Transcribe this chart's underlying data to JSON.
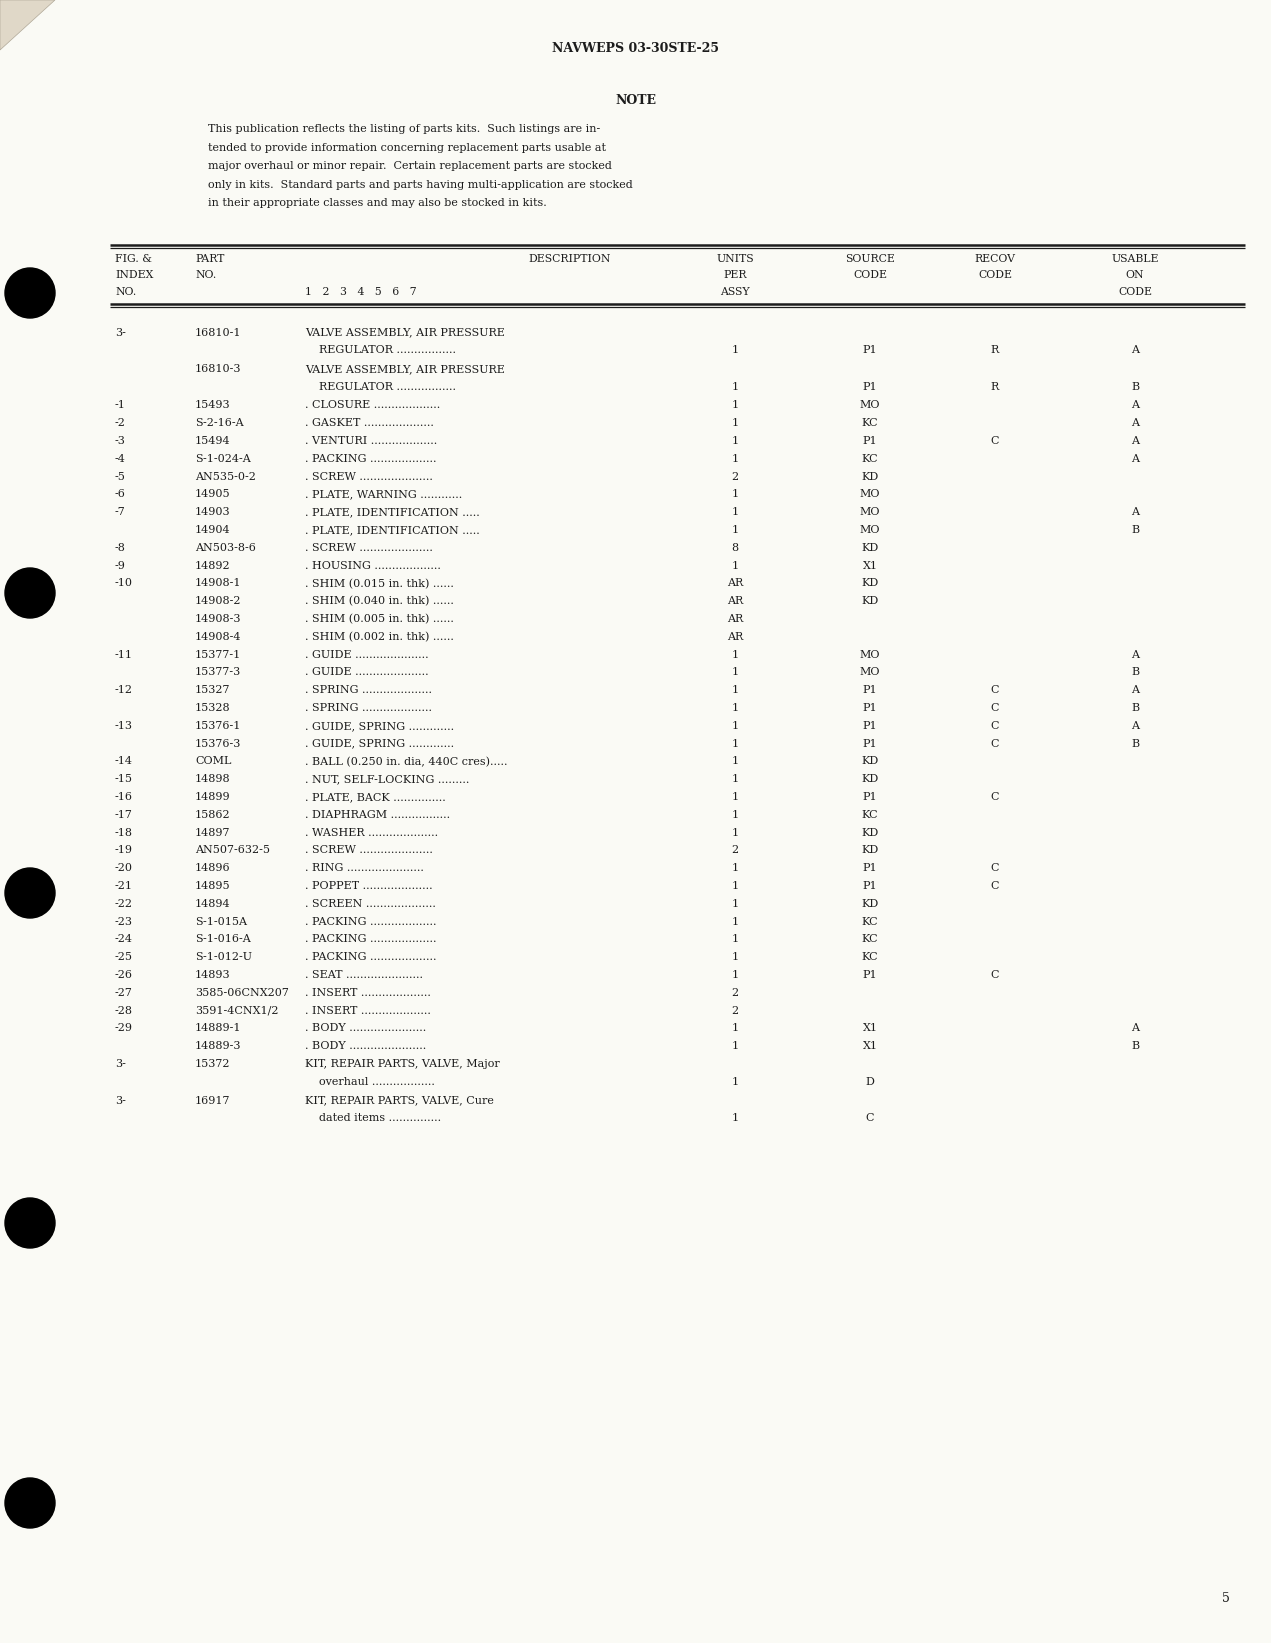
{
  "page_header": "NAVWEPS 03-30STE-25",
  "note_title": "NOTE",
  "note_lines": [
    "This publication reflects the listing of parts kits.  Such listings are in-",
    "tended to provide information concerning replacement parts usable at",
    "major overhaul or minor repair.  Certain replacement parts are stocked",
    "only in kits.  Standard parts and parts having multi-application are stocked",
    "in their appropriate classes and may also be stocked in kits."
  ],
  "rows": [
    {
      "fig": "3-",
      "part": "16810-1",
      "desc1": "VALVE ASSEMBLY, AIR PRESSURE",
      "desc2": "    REGULATOR .................",
      "units": "1",
      "source": "P1",
      "recov": "R",
      "usable": "A"
    },
    {
      "fig": "",
      "part": "16810-3",
      "desc1": "VALVE ASSEMBLY, AIR PRESSURE",
      "desc2": "    REGULATOR .................",
      "units": "1",
      "source": "P1",
      "recov": "R",
      "usable": "B"
    },
    {
      "fig": "-1",
      "part": "15493",
      "desc1": ". CLOSURE ...................",
      "desc2": "",
      "units": "1",
      "source": "MO",
      "recov": "",
      "usable": "A"
    },
    {
      "fig": "-2",
      "part": "S-2-16-A",
      "desc1": ". GASKET ....................",
      "desc2": "",
      "units": "1",
      "source": "KC",
      "recov": "",
      "usable": "A"
    },
    {
      "fig": "-3",
      "part": "15494",
      "desc1": ". VENTURI ...................",
      "desc2": "",
      "units": "1",
      "source": "P1",
      "recov": "C",
      "usable": "A"
    },
    {
      "fig": "-4",
      "part": "S-1-024-A",
      "desc1": ". PACKING ...................",
      "desc2": "",
      "units": "1",
      "source": "KC",
      "recov": "",
      "usable": "A"
    },
    {
      "fig": "-5",
      "part": "AN535-0-2",
      "desc1": ". SCREW .....................",
      "desc2": "",
      "units": "2",
      "source": "KD",
      "recov": "",
      "usable": ""
    },
    {
      "fig": "-6",
      "part": "14905",
      "desc1": ". PLATE, WARNING ............",
      "desc2": "",
      "units": "1",
      "source": "MO",
      "recov": "",
      "usable": ""
    },
    {
      "fig": "-7",
      "part": "14903",
      "desc1": ". PLATE, IDENTIFICATION .....",
      "desc2": "",
      "units": "1",
      "source": "MO",
      "recov": "",
      "usable": "A"
    },
    {
      "fig": "",
      "part": "14904",
      "desc1": ". PLATE, IDENTIFICATION .....",
      "desc2": "",
      "units": "1",
      "source": "MO",
      "recov": "",
      "usable": "B"
    },
    {
      "fig": "-8",
      "part": "AN503-8-6",
      "desc1": ". SCREW .....................",
      "desc2": "",
      "units": "8",
      "source": "KD",
      "recov": "",
      "usable": ""
    },
    {
      "fig": "-9",
      "part": "14892",
      "desc1": ". HOUSING ...................",
      "desc2": "",
      "units": "1",
      "source": "X1",
      "recov": "",
      "usable": ""
    },
    {
      "fig": "-10",
      "part": "14908-1",
      "desc1": ". SHIM (0.015 in. thk) ......",
      "desc2": "",
      "units": "AR",
      "source": "KD",
      "recov": "",
      "usable": ""
    },
    {
      "fig": "",
      "part": "14908-2",
      "desc1": ". SHIM (0.040 in. thk) ......",
      "desc2": "",
      "units": "AR",
      "source": "KD",
      "recov": "",
      "usable": ""
    },
    {
      "fig": "",
      "part": "14908-3",
      "desc1": ". SHIM (0.005 in. thk) ......",
      "desc2": "",
      "units": "AR",
      "source": "",
      "recov": "",
      "usable": ""
    },
    {
      "fig": "",
      "part": "14908-4",
      "desc1": ". SHIM (0.002 in. thk) ......",
      "desc2": "",
      "units": "AR",
      "source": "",
      "recov": "",
      "usable": ""
    },
    {
      "fig": "-11",
      "part": "15377-1",
      "desc1": ". GUIDE .....................",
      "desc2": "",
      "units": "1",
      "source": "MO",
      "recov": "",
      "usable": "A"
    },
    {
      "fig": "",
      "part": "15377-3",
      "desc1": ". GUIDE .....................",
      "desc2": "",
      "units": "1",
      "source": "MO",
      "recov": "",
      "usable": "B"
    },
    {
      "fig": "-12",
      "part": "15327",
      "desc1": ". SPRING ....................",
      "desc2": "",
      "units": "1",
      "source": "P1",
      "recov": "C",
      "usable": "A"
    },
    {
      "fig": "",
      "part": "15328",
      "desc1": ". SPRING ....................",
      "desc2": "",
      "units": "1",
      "source": "P1",
      "recov": "C",
      "usable": "B"
    },
    {
      "fig": "-13",
      "part": "15376-1",
      "desc1": ". GUIDE, SPRING .............",
      "desc2": "",
      "units": "1",
      "source": "P1",
      "recov": "C",
      "usable": "A"
    },
    {
      "fig": "",
      "part": "15376-3",
      "desc1": ". GUIDE, SPRING .............",
      "desc2": "",
      "units": "1",
      "source": "P1",
      "recov": "C",
      "usable": "B"
    },
    {
      "fig": "-14",
      "part": "COML",
      "desc1": ". BALL (0.250 in. dia, 440C cres).....",
      "desc2": "",
      "units": "1",
      "source": "KD",
      "recov": "",
      "usable": ""
    },
    {
      "fig": "-15",
      "part": "14898",
      "desc1": ". NUT, SELF-LOCKING .........",
      "desc2": "",
      "units": "1",
      "source": "KD",
      "recov": "",
      "usable": ""
    },
    {
      "fig": "-16",
      "part": "14899",
      "desc1": ". PLATE, BACK ...............",
      "desc2": "",
      "units": "1",
      "source": "P1",
      "recov": "C",
      "usable": ""
    },
    {
      "fig": "-17",
      "part": "15862",
      "desc1": ". DIAPHRAGM .................",
      "desc2": "",
      "units": "1",
      "source": "KC",
      "recov": "",
      "usable": ""
    },
    {
      "fig": "-18",
      "part": "14897",
      "desc1": ". WASHER ....................",
      "desc2": "",
      "units": "1",
      "source": "KD",
      "recov": "",
      "usable": ""
    },
    {
      "fig": "-19",
      "part": "AN507-632-5",
      "desc1": ". SCREW .....................",
      "desc2": "",
      "units": "2",
      "source": "KD",
      "recov": "",
      "usable": ""
    },
    {
      "fig": "-20",
      "part": "14896",
      "desc1": ". RING ......................",
      "desc2": "",
      "units": "1",
      "source": "P1",
      "recov": "C",
      "usable": ""
    },
    {
      "fig": "-21",
      "part": "14895",
      "desc1": ". POPPET ....................",
      "desc2": "",
      "units": "1",
      "source": "P1",
      "recov": "C",
      "usable": ""
    },
    {
      "fig": "-22",
      "part": "14894",
      "desc1": ". SCREEN ....................",
      "desc2": "",
      "units": "1",
      "source": "KD",
      "recov": "",
      "usable": ""
    },
    {
      "fig": "-23",
      "part": "S-1-015A",
      "desc1": ". PACKING ...................",
      "desc2": "",
      "units": "1",
      "source": "KC",
      "recov": "",
      "usable": ""
    },
    {
      "fig": "-24",
      "part": "S-1-016-A",
      "desc1": ". PACKING ...................",
      "desc2": "",
      "units": "1",
      "source": "KC",
      "recov": "",
      "usable": ""
    },
    {
      "fig": "-25",
      "part": "S-1-012-U",
      "desc1": ". PACKING ...................",
      "desc2": "",
      "units": "1",
      "source": "KC",
      "recov": "",
      "usable": ""
    },
    {
      "fig": "-26",
      "part": "14893",
      "desc1": ". SEAT ......................",
      "desc2": "",
      "units": "1",
      "source": "P1",
      "recov": "C",
      "usable": ""
    },
    {
      "fig": "-27",
      "part": "3585-06CNX207",
      "desc1": ". INSERT ....................",
      "desc2": "",
      "units": "2",
      "source": "",
      "recov": "",
      "usable": ""
    },
    {
      "fig": "-28",
      "part": "3591-4CNX1/2",
      "desc1": ". INSERT ....................",
      "desc2": "",
      "units": "2",
      "source": "",
      "recov": "",
      "usable": ""
    },
    {
      "fig": "-29",
      "part": "14889-1",
      "desc1": ". BODY ......................",
      "desc2": "",
      "units": "1",
      "source": "X1",
      "recov": "",
      "usable": "A"
    },
    {
      "fig": "",
      "part": "14889-3",
      "desc1": ". BODY ......................",
      "desc2": "",
      "units": "1",
      "source": "X1",
      "recov": "",
      "usable": "B"
    },
    {
      "fig": "3-",
      "part": "15372",
      "desc1": "KIT, REPAIR PARTS, VALVE, Major",
      "desc2": "    overhaul ..................",
      "units": "1",
      "source": "D",
      "recov": "",
      "usable": ""
    },
    {
      "fig": "3-",
      "part": "16917",
      "desc1": "KIT, REPAIR PARTS, VALVE, Cure",
      "desc2": "    dated items ...............",
      "units": "1",
      "source": "C",
      "recov": "",
      "usable": ""
    }
  ],
  "page_number": "5",
  "bg_color": "#fafaf5",
  "text_color": "#1c1c1c"
}
